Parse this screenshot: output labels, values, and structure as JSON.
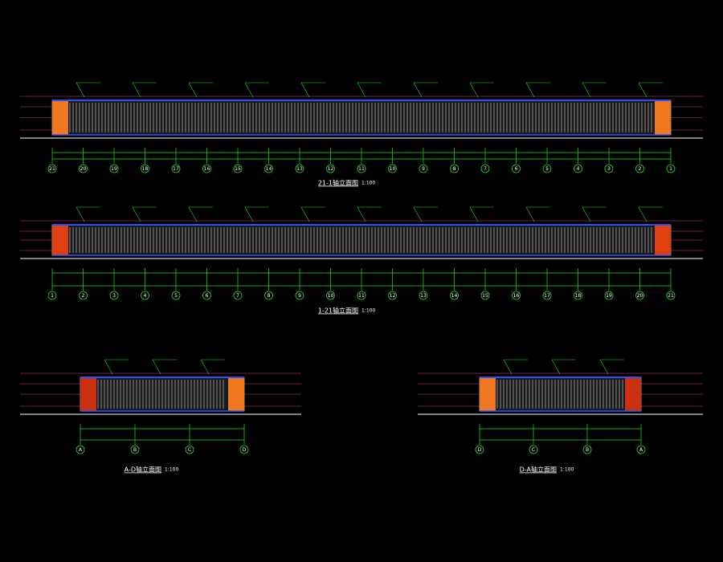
{
  "drawings": [
    {
      "title": "21-1轴立面图",
      "scale": "1:100",
      "axes": [
        "21",
        "20",
        "19",
        "18",
        "17",
        "16",
        "15",
        "14",
        "13",
        "12",
        "11",
        "10",
        "9",
        "8",
        "7",
        "6",
        "5",
        "4",
        "3",
        "2",
        "1"
      ]
    },
    {
      "title": "1-21轴立面图",
      "scale": "1:100",
      "axes": [
        "1",
        "2",
        "3",
        "4",
        "5",
        "6",
        "7",
        "8",
        "9",
        "10",
        "11",
        "12",
        "13",
        "14",
        "15",
        "16",
        "17",
        "18",
        "19",
        "20",
        "21"
      ]
    },
    {
      "title": "A-D轴立面图",
      "scale": "1:100",
      "axes": [
        "A",
        "B",
        "C",
        "D"
      ]
    },
    {
      "title": "D-A轴立面图",
      "scale": "1:100",
      "axes": [
        "D",
        "C",
        "B",
        "A"
      ]
    }
  ]
}
